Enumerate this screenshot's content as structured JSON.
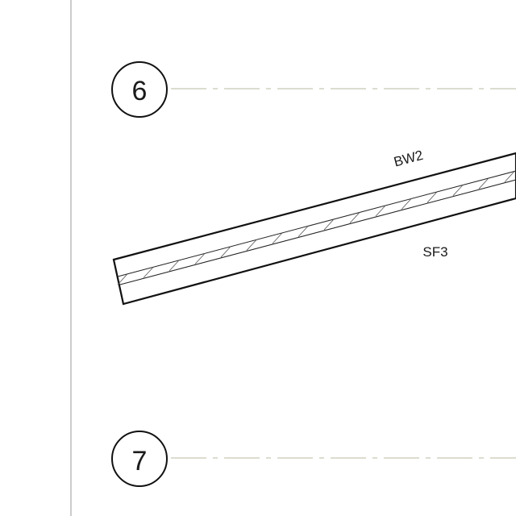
{
  "drawing": {
    "grid_lines": [
      {
        "label": "6"
      },
      {
        "label": "7"
      }
    ],
    "wall": {
      "top_tag": "BW2",
      "bottom_tag": "SF3"
    },
    "colors": {
      "linework": "#111111",
      "border": "#999999",
      "gridline": "#b8b8a0",
      "hatch": "#555555"
    }
  }
}
